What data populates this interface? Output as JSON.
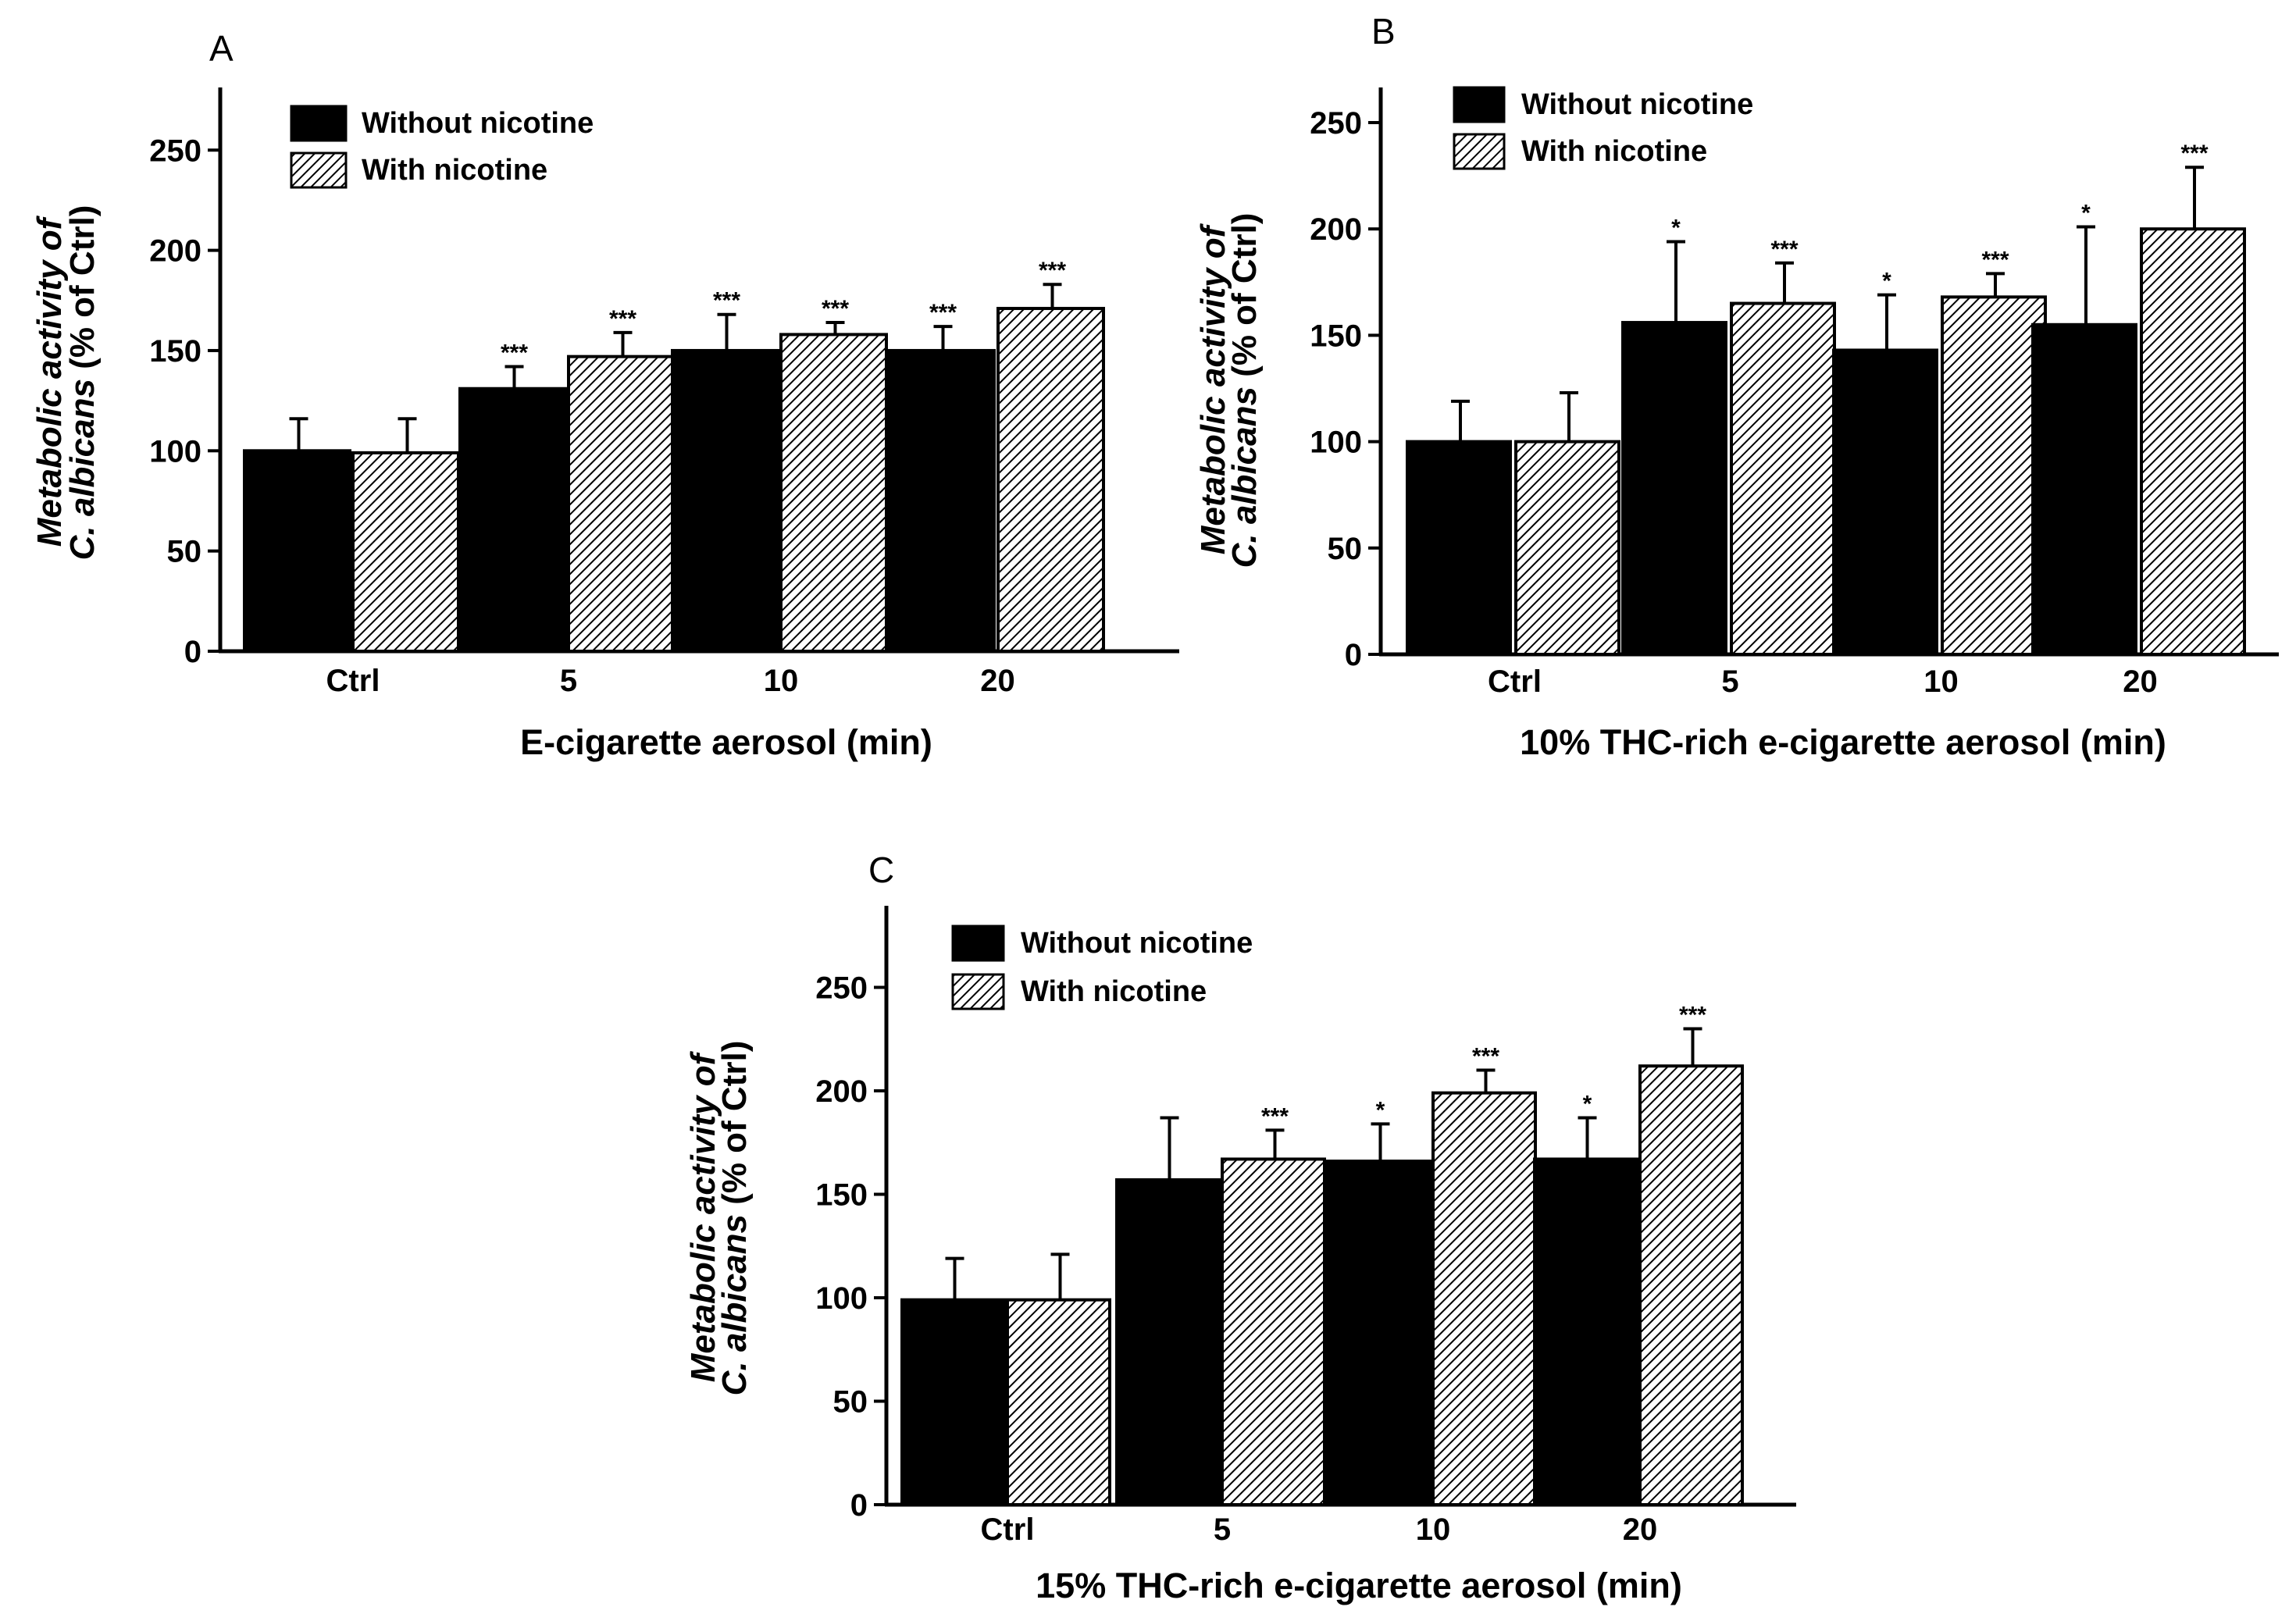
{
  "chart_data": [
    {
      "type": "bar",
      "panel": "A",
      "categories": [
        "Ctrl",
        "5",
        "10",
        "20"
      ],
      "series": [
        {
          "name": "Without nicotine",
          "values": [
            100,
            131,
            150,
            150
          ],
          "errors": [
            16,
            11,
            18,
            12
          ],
          "sig": [
            "",
            "***",
            "***",
            "***"
          ]
        },
        {
          "name": "With nicotine",
          "values": [
            99,
            147,
            158,
            171
          ],
          "errors": [
            17,
            12,
            6,
            12
          ],
          "sig": [
            "",
            "***",
            "***",
            "***"
          ]
        }
      ],
      "xlabel": "E-cigarette aerosol (min)",
      "ylabel_line1": "Metabolic activity of",
      "ylabel_italic": "C. albicans",
      "ylabel_rest": " (% of Ctrl)",
      "ylim": [
        0,
        280
      ],
      "yticks": [
        0,
        50,
        100,
        150,
        200,
        250
      ],
      "legend": "top-left"
    },
    {
      "type": "bar",
      "panel": "B",
      "categories": [
        "Ctrl",
        "5",
        "10",
        "20"
      ],
      "series": [
        {
          "name": "Without nicotine",
          "values": [
            100,
            156,
            143,
            155
          ],
          "errors": [
            19,
            38,
            26,
            46
          ],
          "sig": [
            "",
            "*",
            "*",
            "*"
          ]
        },
        {
          "name": "With nicotine",
          "values": [
            100,
            165,
            168,
            200
          ],
          "errors": [
            23,
            19,
            11,
            29
          ],
          "sig": [
            "",
            "***",
            "***",
            "***"
          ]
        }
      ],
      "xlabel": "10%  THC-rich  e-cigarette aerosol (min)",
      "ylabel_line1": "Metabolic activity of",
      "ylabel_italic": "C. albicans",
      "ylabel_rest": " (% of Ctrl)",
      "ylim": [
        0,
        265
      ],
      "yticks": [
        0,
        50,
        100,
        150,
        200,
        250
      ],
      "legend": "top-left"
    },
    {
      "type": "bar",
      "panel": "C",
      "categories": [
        "Ctrl",
        "5",
        "10",
        "20"
      ],
      "series": [
        {
          "name": "Without nicotine",
          "values": [
            99,
            157,
            166,
            167
          ],
          "errors": [
            20,
            30,
            18,
            20
          ],
          "sig": [
            "",
            "",
            "*",
            "*"
          ]
        },
        {
          "name": "With nicotine",
          "values": [
            99,
            167,
            199,
            212
          ],
          "errors": [
            22,
            14,
            11,
            18
          ],
          "sig": [
            "",
            "***",
            "***",
            "***"
          ]
        }
      ],
      "xlabel": "15%  THC-rich  e-cigarette aerosol (min)",
      "ylabel_line1": "Metabolic activity of",
      "ylabel_italic": "C. albicans",
      "ylabel_rest": " (% of Ctrl)",
      "ylim": [
        0,
        290
      ],
      "yticks": [
        0,
        50,
        100,
        150,
        200,
        250
      ],
      "legend": "top-left"
    }
  ]
}
